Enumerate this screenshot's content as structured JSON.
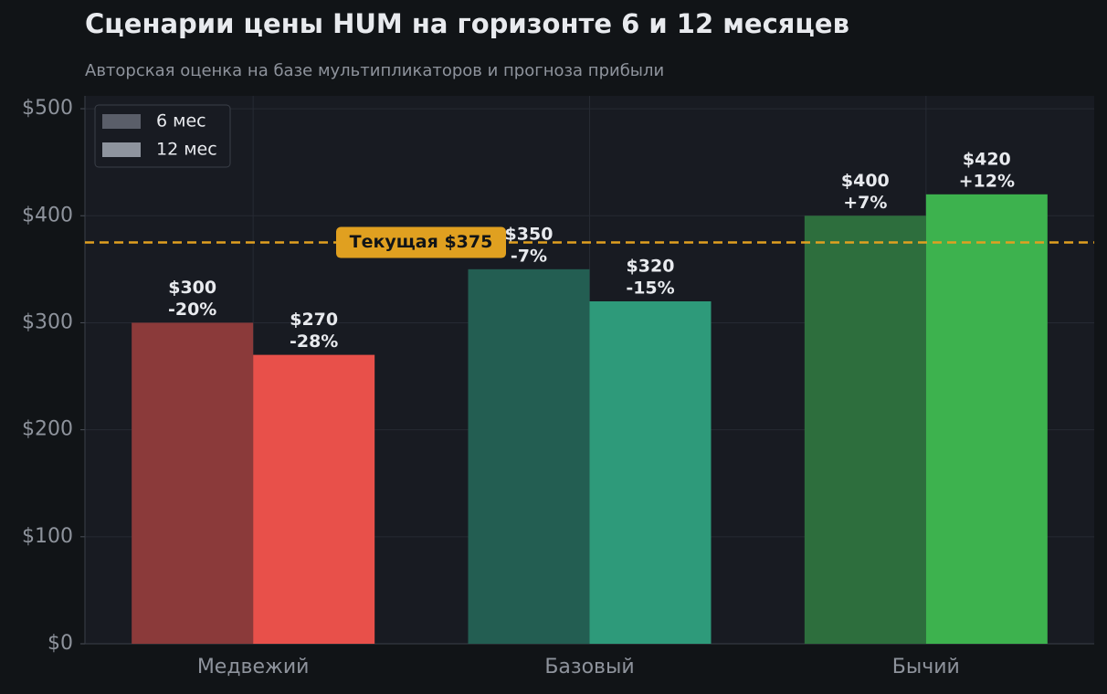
{
  "chart_data": {
    "type": "bar",
    "title": "Сценарии цены HUM на горизонте 6 и 12 месяцев",
    "subtitle": "Авторская оценка на базе мультипликаторов и прогноза прибыли",
    "categories": [
      "Медвежий",
      "Базовый",
      "Бычий"
    ],
    "series": [
      {
        "name": "6 мес",
        "color": "#5a5e69",
        "colors": [
          "#8b3a3a",
          "#235e52",
          "#2d6e3d"
        ],
        "values": [
          300,
          350,
          400
        ],
        "value_labels": [
          "$300",
          "$350",
          "$400"
        ],
        "change_labels": [
          "-20%",
          "-7%",
          "+7%"
        ]
      },
      {
        "name": "12 мес",
        "color": "#8e949e",
        "colors": [
          "#e8504a",
          "#2e9a7a",
          "#3db24e"
        ],
        "values": [
          270,
          320,
          420
        ],
        "value_labels": [
          "$270",
          "$320",
          "$420"
        ],
        "change_labels": [
          "-28%",
          "-15%",
          "+12%"
        ]
      }
    ],
    "reference_line": {
      "value": 375,
      "label": "Текущая $375",
      "color": "#e0a020"
    },
    "ylim": [
      0,
      512
    ],
    "yticks": [
      {
        "value": 0,
        "label": "$0"
      },
      {
        "value": 100,
        "label": "$100"
      },
      {
        "value": 200,
        "label": "$200"
      },
      {
        "value": 300,
        "label": "$300"
      },
      {
        "value": 400,
        "label": "$400"
      },
      {
        "value": 500,
        "label": "$500"
      }
    ],
    "grid": true,
    "legend": "upper left"
  }
}
